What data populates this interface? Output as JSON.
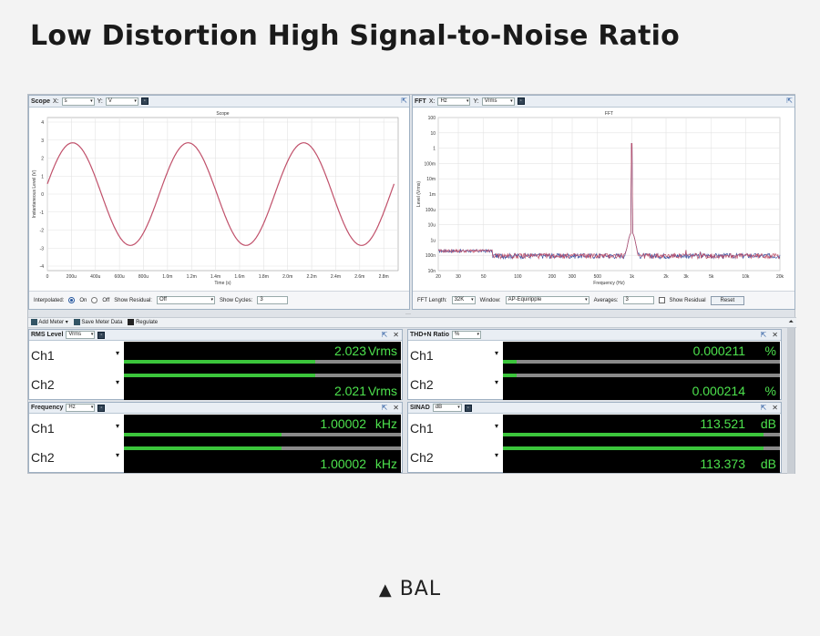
{
  "page_title": "Low Distortion High Signal-to-Noise Ratio",
  "footer_label": "BAL",
  "scope": {
    "title": "Scope",
    "x_label": "X:",
    "x_value": "s",
    "y_label": "Y:",
    "y_value": "V",
    "plot_title": "Scope",
    "xlabel": "Time (s)",
    "ylabel": "Instantaneous Level (V)",
    "yticks": [
      "4",
      "3",
      "2",
      "1",
      "0",
      "-1",
      "-2",
      "-3",
      "-4"
    ],
    "xticks": [
      "0",
      "200u",
      "400u",
      "600u",
      "800u",
      "1.0m",
      "1.2m",
      "1.4m",
      "1.6m",
      "1.8m",
      "2.0m",
      "2.2m",
      "2.4m",
      "2.6m",
      "2.8m"
    ],
    "interpolated_label": "Interpolated:",
    "on_label": "On",
    "off_label": "Off",
    "show_residual_label": "Show Residual:",
    "show_residual_value": "Off",
    "show_cycles_label": "Show Cycles:",
    "show_cycles_value": "3"
  },
  "fft": {
    "title": "FFT",
    "x_label": "X:",
    "x_value": "Hz",
    "y_label": "Y:",
    "y_value": "Vrms",
    "plot_title": "FFT",
    "xlabel": "Frequency (Hz)",
    "ylabel": "Level (Vrms)",
    "yticks": [
      "100",
      "10",
      "1",
      "100m",
      "10m",
      "1m",
      "100u",
      "10u",
      "1u",
      "100n",
      "10n"
    ],
    "xticks": [
      "20",
      "30",
      "50",
      "100",
      "200",
      "300",
      "500",
      "1k",
      "2k",
      "3k",
      "5k",
      "10k",
      "20k"
    ],
    "fft_length_label": "FFT Length:",
    "fft_length_value": "32K",
    "window_label": "Window:",
    "window_value": "AP-Equiripple",
    "averages_label": "Averages:",
    "averages_value": "3",
    "show_residual_label": "Show Residual",
    "reset_label": "Reset"
  },
  "toolbar": {
    "add_meter": "Add Meter",
    "save_meter_data": "Save Meter Data",
    "regulate": "Regulate"
  },
  "meters": {
    "rms": {
      "title": "RMS Level",
      "unit_select": "Vrms",
      "ch1": {
        "label": "Ch1",
        "value": "2.023",
        "unit": "Vrms",
        "bar": 0.69
      },
      "ch2": {
        "label": "Ch2",
        "value": "2.021",
        "unit": "Vrms",
        "bar": 0.69
      }
    },
    "thdn": {
      "title": "THD+N Ratio",
      "unit_select": "%",
      "ch1": {
        "label": "Ch1",
        "value": "0.000211",
        "unit": "%",
        "bar": 0.05
      },
      "ch2": {
        "label": "Ch2",
        "value": "0.000214",
        "unit": "%",
        "bar": 0.05
      }
    },
    "freq": {
      "title": "Frequency",
      "unit_select": "Hz",
      "ch1": {
        "label": "Ch1",
        "value": "1.00002",
        "unit": "kHz",
        "bar": 0.57
      },
      "ch2": {
        "label": "Ch2",
        "value": "1.00002",
        "unit": "kHz",
        "bar": 0.57
      }
    },
    "sinad": {
      "title": "SINAD",
      "unit_select": "dB",
      "ch1": {
        "label": "Ch1",
        "value": "113.521",
        "unit": "dB",
        "bar": 0.94
      },
      "ch2": {
        "label": "Ch2",
        "value": "113.373",
        "unit": "dB",
        "bar": 0.94
      }
    }
  },
  "colors": {
    "signal": "#c0506a",
    "meter_text": "#4de24d",
    "meter_bar": "#3bc53b",
    "fft_ch2": "#3a4f9e"
  }
}
